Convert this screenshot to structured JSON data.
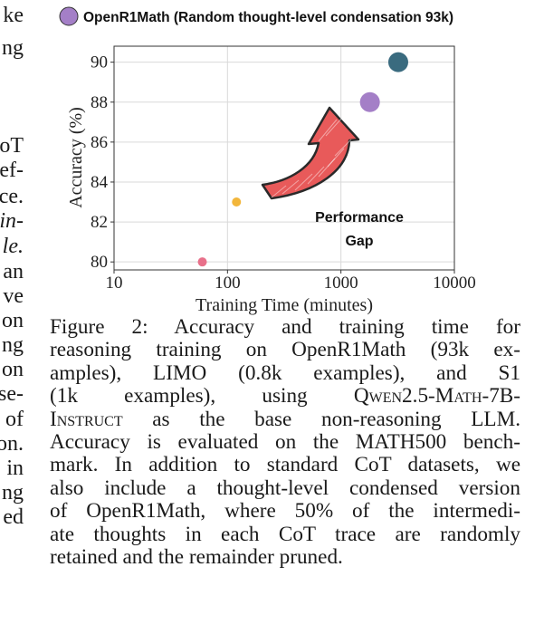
{
  "left_column_fragments": [
    {
      "text": "ke",
      "italic": false
    },
    {
      "text": "ng",
      "italic": false
    },
    {
      "text": "oT",
      "italic": false
    },
    {
      "text": "ef-",
      "italic": false
    },
    {
      "text": "ce.",
      "italic": false
    },
    {
      "text": "in-",
      "italic": true
    },
    {
      "text": "le.",
      "italic": true
    },
    {
      "text": "an",
      "italic": false
    },
    {
      "text": "ve",
      "italic": false
    },
    {
      "text": "on",
      "italic": false
    },
    {
      "text": "ng",
      "italic": false
    },
    {
      "text": "on",
      "italic": false
    },
    {
      "text": "se-",
      "italic": false
    },
    {
      "text": "of",
      "italic": false
    },
    {
      "text": "on.",
      "italic": false
    },
    {
      "text": "in",
      "italic": false
    },
    {
      "text": "ng",
      "italic": false
    },
    {
      "text": "ed",
      "italic": false
    }
  ],
  "chart_data": {
    "type": "scatter",
    "legend_entries": [
      {
        "label": "OpenR1Math (Random thought-level condensation 93k)",
        "color": "#a47fc7"
      }
    ],
    "xlabel": "Training Time (minutes)",
    "ylabel": "Accuracy (%)",
    "x_scale": "log",
    "xlim": [
      10,
      10000
    ],
    "ylim": [
      79.6,
      90.8
    ],
    "x_ticks": [
      10,
      100,
      1000,
      10000
    ],
    "x_tick_labels": [
      "10",
      "100",
      "1000",
      "10000"
    ],
    "y_ticks": [
      80,
      82,
      84,
      86,
      88,
      90
    ],
    "y_tick_labels": [
      "80",
      "82",
      "84",
      "86",
      "88",
      "90"
    ],
    "grid": true,
    "points": [
      {
        "x": 60,
        "y": 80.0,
        "color": "#e8708a",
        "size": "small"
      },
      {
        "x": 120,
        "y": 83.0,
        "color": "#f2b63b",
        "size": "small"
      },
      {
        "x": 1800,
        "y": 88.0,
        "color": "#a47fc7",
        "size": "large"
      },
      {
        "x": 3200,
        "y": 90.0,
        "color": "#3a6b7f",
        "size": "large"
      }
    ],
    "annotation": {
      "lines": [
        "Performance",
        "Gap"
      ],
      "arrow_color": "#e85a5a"
    }
  },
  "caption": {
    "lines": [
      [
        {
          "t": "Figure 2:  Accuracy and training time for"
        }
      ],
      [
        {
          "t": "reasoning training on OpenR1Math (93k ex-"
        }
      ],
      [
        {
          "t": "amples), LIMO (0.8k examples), and S1"
        }
      ],
      [
        {
          "t": "(1k examples), using "
        },
        {
          "t": "Qwen2.5-Math-7B-",
          "sc": true
        }
      ],
      [
        {
          "t": "Instruct",
          "sc": true
        },
        {
          "t": " as the base non-reasoning LLM."
        }
      ],
      [
        {
          "t": "Accuracy is evaluated on the MATH500 bench-"
        }
      ],
      [
        {
          "t": "mark. In addition to standard CoT datasets, we"
        }
      ],
      [
        {
          "t": "also include a thought-level condensed version"
        }
      ],
      [
        {
          "t": "of OpenR1Math, where 50% of the intermedi-"
        }
      ],
      [
        {
          "t": "ate thoughts in each CoT trace are randomly"
        }
      ],
      [
        {
          "t": "retained and the remainder pruned."
        }
      ]
    ]
  }
}
